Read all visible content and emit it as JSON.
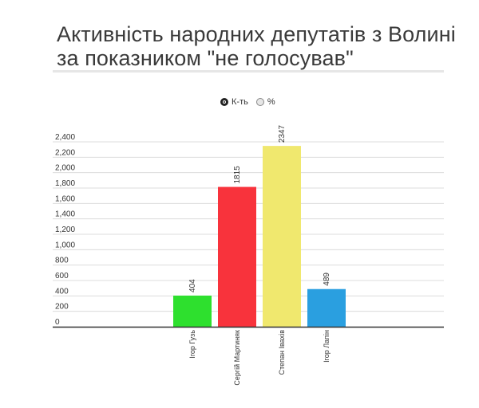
{
  "title": "Активність народних депутатів з Волині за показником \"не голосував\"",
  "toggle": {
    "options": [
      {
        "label": "К-ть",
        "selected": true
      },
      {
        "label": "%",
        "selected": false
      }
    ]
  },
  "chart_data": {
    "type": "bar",
    "categories": [
      "Ігор Гузь",
      "Сергій Мартиняк",
      "Степан Івахів",
      "Ігор Лапін"
    ],
    "values": [
      404,
      1815,
      2347,
      489
    ],
    "colors": [
      "#2ee02e",
      "#f8333c",
      "#f0e86e",
      "#2a9fe0"
    ],
    "ylim": [
      0,
      2400
    ],
    "yticks": [
      0,
      200,
      400,
      600,
      800,
      1000,
      1200,
      1400,
      1600,
      1800,
      2000,
      2200,
      2400
    ],
    "ytick_labels": [
      "0",
      "200",
      "400",
      "600",
      "800",
      "1,000",
      "1,200",
      "1,400",
      "1,600",
      "1,800",
      "2,000",
      "2,200",
      "2,400"
    ],
    "grid": true,
    "data_labels": true
  }
}
